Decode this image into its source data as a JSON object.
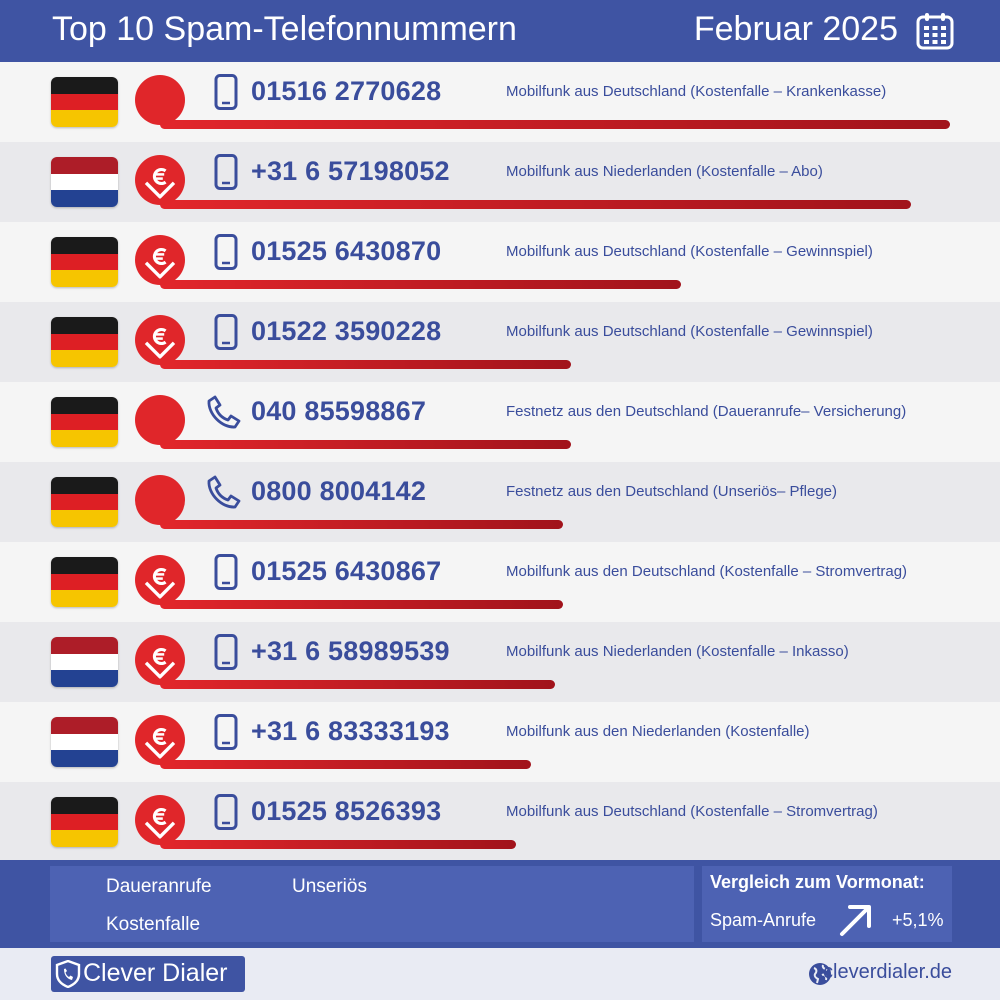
{
  "header": {
    "title": "Top 10 Spam-Telefonnummern",
    "date": "Februar 2025"
  },
  "chart_data": {
    "type": "bar",
    "orientation": "horizontal",
    "title": "Top 10 Spam-Telefonnummern",
    "categories": [
      "01516 2770628",
      "+31 6 57198052",
      "01525 6430870",
      "01522 3590228",
      "040 85598867",
      "0800 8004142",
      "01525 6430867",
      "+31 6 58989539",
      "+31 6 83333193",
      "01525 8526393"
    ],
    "values": [
      100,
      95,
      66,
      52,
      52,
      51,
      51,
      50,
      47,
      45
    ],
    "value_note": "relative bar length, estimated (longest = 100)"
  },
  "rows": [
    {
      "flag": "de",
      "category": "kostenfalle",
      "phone_type": "mobile",
      "number": "01516 2770628",
      "description": "Mobilfunk aus Deutschland (Kostenfalle – Krankenkasse)"
    },
    {
      "flag": "nl",
      "category": "kostenfalle",
      "phone_type": "mobile",
      "number": "+31 6 57198052",
      "description": "Mobilfunk aus Niederlanden (Kostenfalle – Abo)"
    },
    {
      "flag": "de",
      "category": "kostenfalle",
      "phone_type": "mobile",
      "number": "01525 6430870",
      "description": "Mobilfunk aus Deutschland (Kostenfalle – Gewinnspiel)"
    },
    {
      "flag": "de",
      "category": "kostenfalle",
      "phone_type": "mobile",
      "number": "01522 3590228",
      "description": "Mobilfunk aus Deutschland (Kostenfalle – Gewinnspiel)"
    },
    {
      "flag": "de",
      "category": "daueranrufe",
      "phone_type": "landline",
      "number": "040 85598867",
      "description": "Festnetz aus den Deutschland (Daueranrufe– Versicherung)"
    },
    {
      "flag": "de",
      "category": "unserioes",
      "phone_type": "landline",
      "number": "0800 8004142",
      "description": "Festnetz aus den Deutschland (Unseriös– Pflege)"
    },
    {
      "flag": "de",
      "category": "kostenfalle",
      "phone_type": "mobile",
      "number": "01525 6430867",
      "description": "Mobilfunk aus den Deutschland (Kostenfalle – Stromvertrag)"
    },
    {
      "flag": "nl",
      "category": "kostenfalle",
      "phone_type": "mobile",
      "number": "+31 6 58989539",
      "description": "Mobilfunk aus Niederlanden (Kostenfalle – Inkasso)"
    },
    {
      "flag": "nl",
      "category": "kostenfalle",
      "phone_type": "mobile",
      "number": "+31 6 83333193",
      "description": "Mobilfunk aus den Niederlanden (Kostenfalle)"
    },
    {
      "flag": "de",
      "category": "kostenfalle",
      "phone_type": "mobile",
      "number": "01525 8526393",
      "description": "Mobilfunk aus Deutschland (Kostenfalle – Stromvertrag)"
    }
  ],
  "legend": {
    "daueranrufe": "Daueranrufe",
    "unserioes": "Unseriös",
    "kostenfalle": "Kostenfalle"
  },
  "comparison": {
    "title": "Vergleich zum Vormonat:",
    "metric": "Spam-Anrufe",
    "value": "+5,1%"
  },
  "footer": {
    "brand": "Clever Dialer",
    "website": "cleverdialer.de"
  },
  "colors": {
    "primary": "#3f54a3",
    "accent_red": "#e0262a",
    "text_blue": "#3a4d9c"
  }
}
